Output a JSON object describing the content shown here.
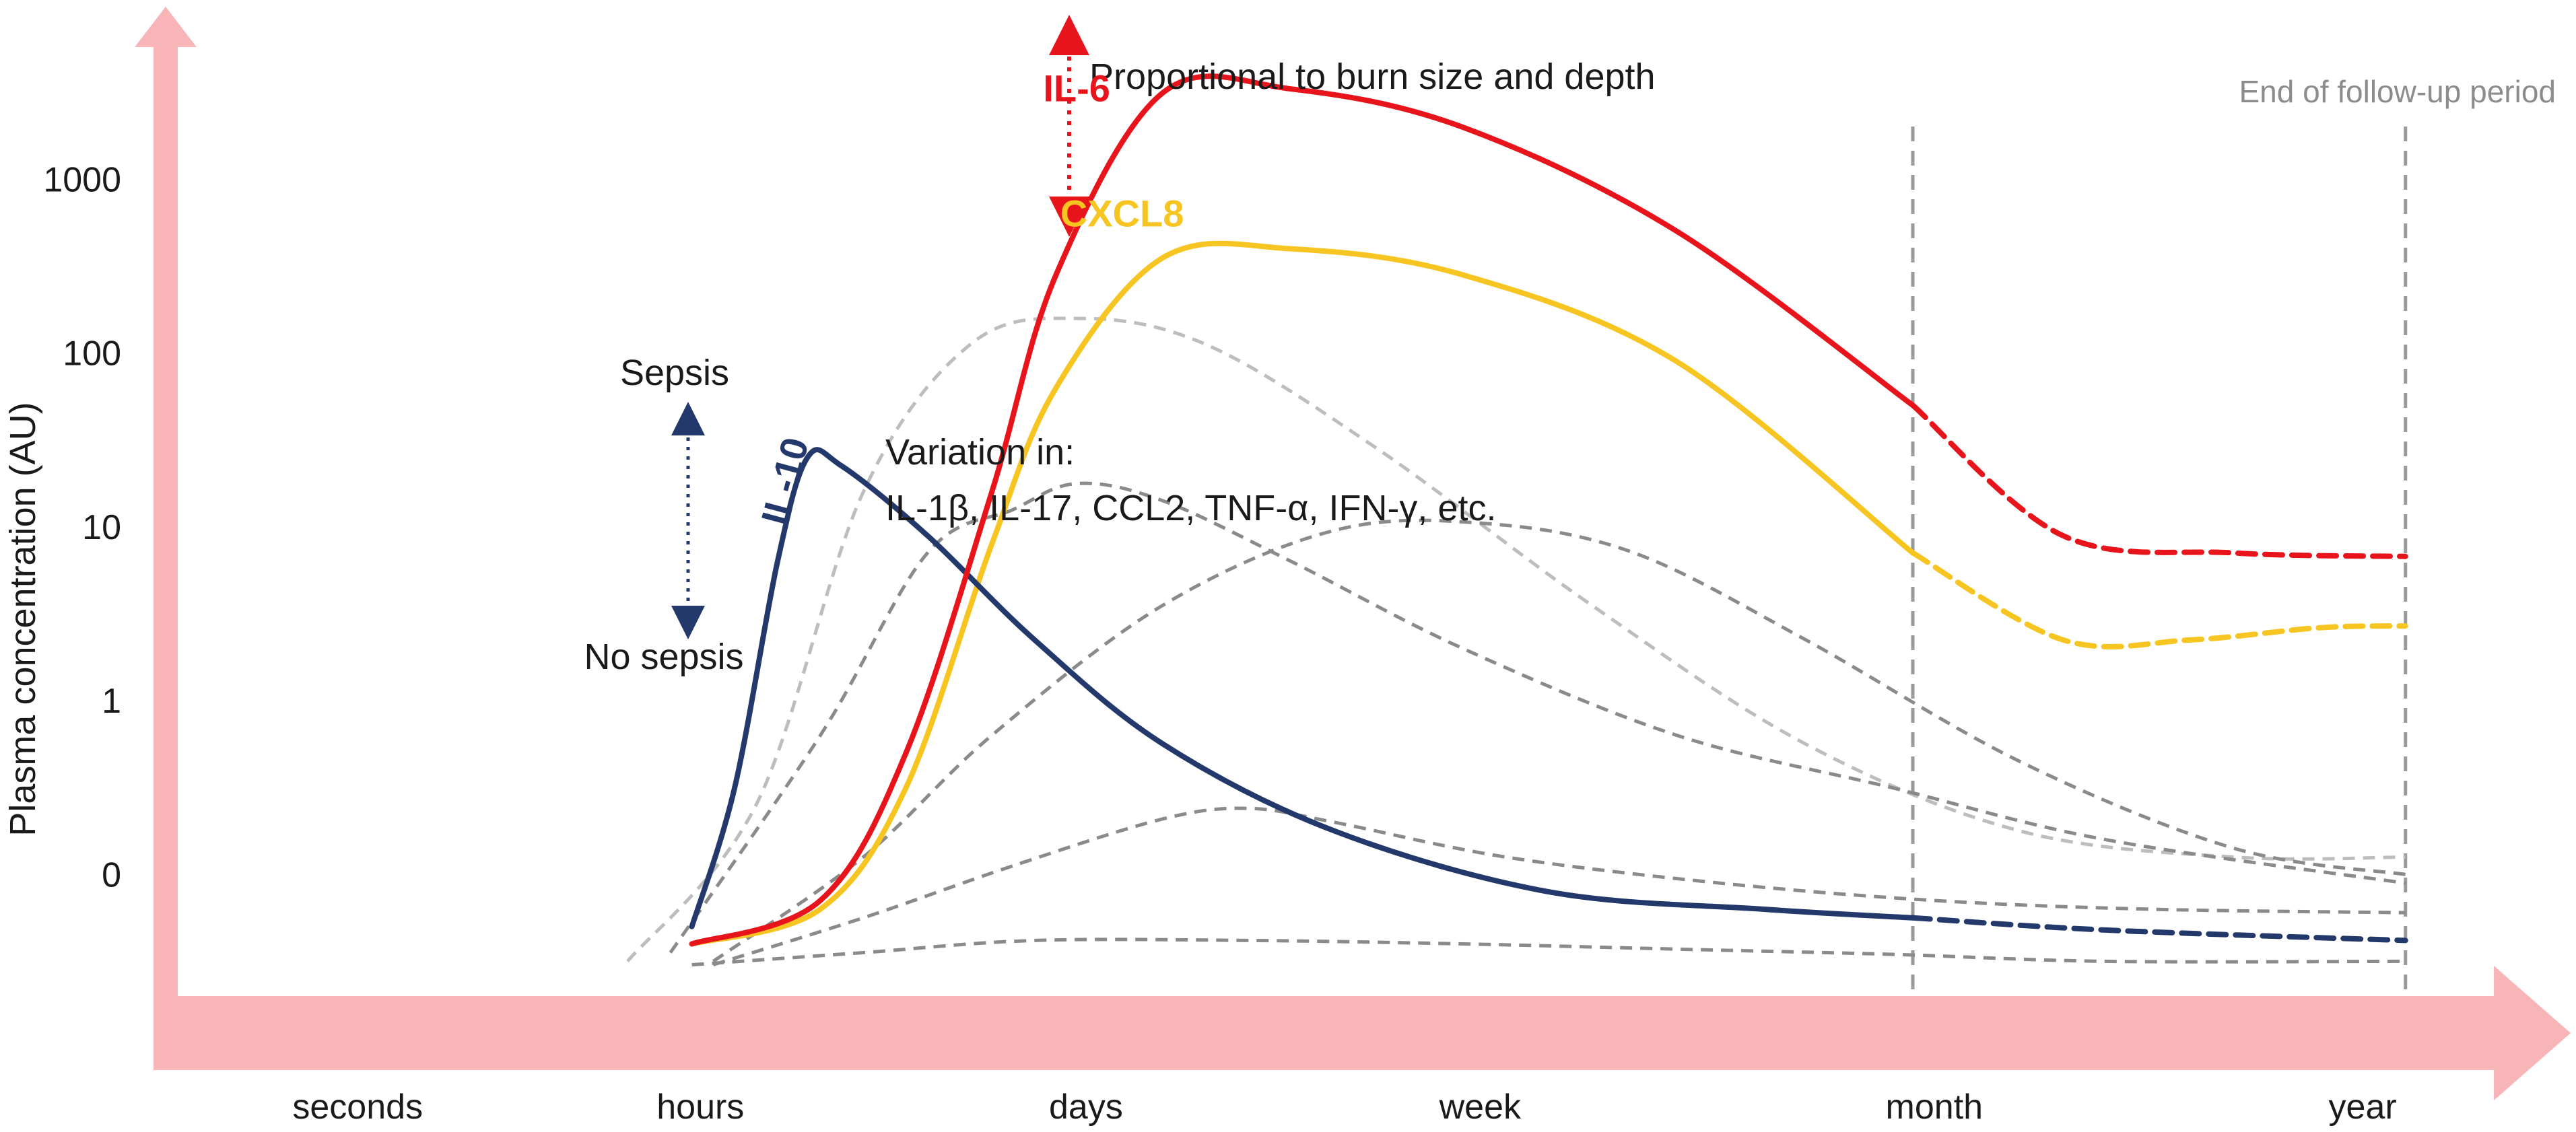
{
  "chart_data": {
    "type": "line",
    "title": "",
    "ylabel": "Plasma concentration (AU)",
    "xlabel": "",
    "y_scale": "log",
    "y_ticks": [
      "0",
      "1",
      "10",
      "100",
      "1000"
    ],
    "x_categories": [
      "seconds",
      "hours",
      "days",
      "week",
      "month",
      "year"
    ],
    "x_range": [
      0,
      5.4
    ],
    "y_range": [
      -1.7,
      3.8
    ],
    "grid": false,
    "legend": "none",
    "colors": {
      "axis": "#f7b5b8",
      "il6": "#e8141b",
      "cxcl8": "#f7c521",
      "il10": "#23386b",
      "other": "#8a8a8a",
      "other_light": "#bdbdbd",
      "marker": "#9a9a9a"
    },
    "reference_lines": [
      {
        "x": 4.05,
        "label": ""
      },
      {
        "x": 5.2,
        "label": "End of follow-up period"
      }
    ],
    "series": [
      {
        "name": "IL-6",
        "color": "#e8141b",
        "style": "solid_then_dashed_after_month",
        "x": [
          1.2,
          1.5,
          1.7,
          1.9,
          2.05,
          2.3,
          2.6,
          3.0,
          3.5,
          4.05,
          4.4,
          4.8,
          5.2
        ],
        "y": [
          -1.4,
          -1.15,
          -0.3,
          1.2,
          2.45,
          3.5,
          3.52,
          3.3,
          2.7,
          1.7,
          0.95,
          0.85,
          0.83
        ]
      },
      {
        "name": "CXCL8",
        "color": "#f7c521",
        "style": "solid_then_dashed_after_month",
        "x": [
          1.2,
          1.5,
          1.7,
          1.9,
          2.05,
          2.3,
          2.6,
          3.0,
          3.5,
          4.05,
          4.4,
          4.7,
          5.0,
          5.2
        ],
        "y": [
          -1.4,
          -1.2,
          -0.5,
          0.9,
          1.8,
          2.55,
          2.6,
          2.45,
          1.95,
          0.85,
          0.35,
          0.35,
          0.42,
          0.43
        ]
      },
      {
        "name": "IL-10",
        "color": "#23386b",
        "style": "solid_then_dashed_after_month",
        "x": [
          1.2,
          1.3,
          1.4,
          1.47,
          1.55,
          1.75,
          2.0,
          2.3,
          2.7,
          3.2,
          3.7,
          4.05,
          4.5,
          5.2
        ],
        "y": [
          -1.3,
          -0.5,
          0.8,
          1.4,
          1.35,
          0.95,
          0.35,
          -0.25,
          -0.75,
          -1.1,
          -1.2,
          -1.25,
          -1.32,
          -1.38
        ]
      },
      {
        "name": "",
        "color": "#bdbdbd",
        "style": "dashed",
        "x": [
          1.05,
          1.35,
          1.6,
          1.85,
          2.1,
          2.4,
          2.8,
          3.3,
          3.8,
          4.3,
          4.8,
          5.2
        ],
        "y": [
          -1.5,
          -0.6,
          1.2,
          2.05,
          2.2,
          2.05,
          1.45,
          0.55,
          -0.25,
          -0.75,
          -0.9,
          -0.9
        ]
      },
      {
        "name": "",
        "color": "#8a8a8a",
        "style": "dashed",
        "x": [
          1.15,
          1.5,
          1.75,
          1.95,
          2.1,
          2.3,
          2.6,
          3.0,
          3.5,
          4.0,
          4.5,
          5.2
        ],
        "y": [
          -1.45,
          -0.2,
          0.85,
          1.1,
          1.25,
          1.15,
          0.8,
          0.3,
          -0.2,
          -0.5,
          -0.8,
          -1.05
        ]
      },
      {
        "name": "",
        "color": "#8a8a8a",
        "style": "dashed",
        "x": [
          1.25,
          1.6,
          1.9,
          2.3,
          2.7,
          3.05,
          3.4,
          3.8,
          4.3,
          4.8,
          5.2
        ],
        "y": [
          -1.5,
          -0.9,
          -0.2,
          0.55,
          0.98,
          1.02,
          0.85,
          0.35,
          -0.35,
          -0.85,
          -1.0
        ]
      },
      {
        "name": "",
        "color": "#8a8a8a",
        "style": "dashed",
        "x": [
          1.25,
          1.6,
          1.95,
          2.3,
          2.5,
          2.7,
          3.1,
          3.6,
          4.1,
          4.6,
          5.2
        ],
        "y": [
          -1.52,
          -1.25,
          -0.95,
          -0.68,
          -0.62,
          -0.7,
          -0.9,
          -1.05,
          -1.15,
          -1.2,
          -1.22
        ]
      },
      {
        "name": "",
        "color": "#8a8a8a",
        "style": "dashed",
        "x": [
          1.2,
          1.6,
          2.0,
          2.5,
          3.0,
          3.5,
          4.0,
          4.5,
          5.2
        ],
        "y": [
          -1.52,
          -1.45,
          -1.38,
          -1.38,
          -1.4,
          -1.43,
          -1.46,
          -1.5,
          -1.5
        ]
      }
    ],
    "annotations": {
      "il6_note": "Proportional to burn size and depth",
      "variation_title": "Variation in:",
      "variation_list": "IL-1β, IL-17, CCL2, TNF-α, IFN-γ, etc.",
      "sepsis": "Sepsis",
      "no_sepsis": "No sepsis"
    }
  }
}
